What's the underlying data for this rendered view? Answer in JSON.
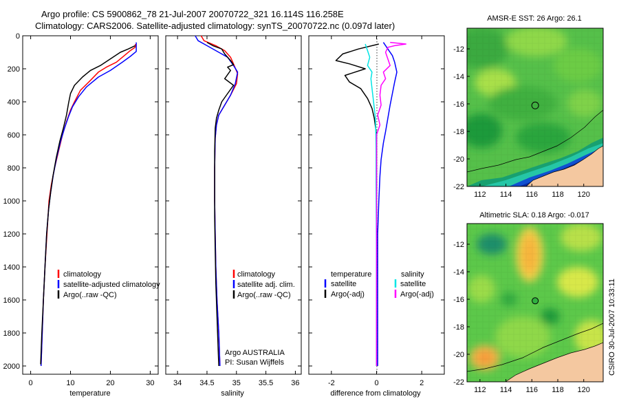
{
  "header": {
    "line1": "Argo profile: CS 5900862_78 21-Jul-2007 20070722_321 16.114S 116.258E",
    "line2": "Climatology: CARS2006. Satellite-adjusted climatology: synTS_20070722.nc (0.097d later)"
  },
  "colors": {
    "climatology": "#ff0000",
    "satellite": "#0000ff",
    "argo": "#000000",
    "sal_satellite": "#00e5e5",
    "sal_argo": "#ff00ff"
  },
  "chart_data": [
    {
      "id": "temperature",
      "type": "line",
      "xlabel": "temperature",
      "ylabel": "",
      "xlim": [
        -2,
        32
      ],
      "ylim": [
        0,
        2050
      ],
      "y_reversed": true,
      "xticks": [
        0,
        10,
        20,
        30
      ],
      "yticks": [
        0,
        200,
        400,
        600,
        800,
        1000,
        1200,
        1400,
        1600,
        1800,
        2000
      ],
      "legend": [
        "climatology",
        "satellite-adjusted climatology",
        "Argo(..raw -QC)"
      ],
      "series": [
        {
          "name": "climatology",
          "color_key": "climatology",
          "points": [
            [
              26.3,
              50
            ],
            [
              26.2,
              70
            ],
            [
              25,
              90
            ],
            [
              23.5,
              120
            ],
            [
              21.5,
              160
            ],
            [
              19,
              190
            ],
            [
              17,
              220
            ],
            [
              15,
              270
            ],
            [
              12.5,
              330
            ],
            [
              11,
              400
            ],
            [
              10,
              450
            ],
            [
              9,
              520
            ],
            [
              8,
              600
            ],
            [
              7,
              700
            ],
            [
              6,
              800
            ],
            [
              5.2,
              900
            ],
            [
              4.6,
              1000
            ],
            [
              4.1,
              1200
            ],
            [
              3.6,
              1400
            ],
            [
              3.2,
              1600
            ],
            [
              2.9,
              1800
            ],
            [
              2.6,
              2000
            ]
          ]
        },
        {
          "name": "satellite-adjusted climatology",
          "color_key": "satellite",
          "points": [
            [
              26.5,
              40
            ],
            [
              26.5,
              95
            ],
            [
              25,
              125
            ],
            [
              23,
              160
            ],
            [
              20,
              210
            ],
            [
              17,
              250
            ],
            [
              14,
              310
            ],
            [
              12,
              370
            ],
            [
              10.5,
              430
            ],
            [
              9.5,
              490
            ],
            [
              8.5,
              560
            ],
            [
              7.5,
              640
            ],
            [
              6.5,
              740
            ],
            [
              5.7,
              840
            ],
            [
              5,
              950
            ],
            [
              4.5,
              1050
            ],
            [
              4,
              1200
            ],
            [
              3.6,
              1400
            ],
            [
              3.2,
              1600
            ],
            [
              2.9,
              1800
            ],
            [
              2.6,
              2000
            ]
          ]
        },
        {
          "name": "Argo(..raw -QC)",
          "color_key": "argo",
          "points": [
            [
              26.2,
              60
            ],
            [
              24.5,
              80
            ],
            [
              22.5,
              100
            ],
            [
              20,
              140
            ],
            [
              17.5,
              180
            ],
            [
              15,
              210
            ],
            [
              13,
              250
            ],
            [
              11,
              300
            ],
            [
              10,
              350
            ],
            [
              9.5,
              410
            ],
            [
              9,
              480
            ],
            [
              8.2,
              560
            ],
            [
              7.3,
              640
            ],
            [
              6.4,
              740
            ],
            [
              5.6,
              850
            ],
            [
              5,
              950
            ],
            [
              4.5,
              1050
            ],
            [
              4,
              1200
            ],
            [
              3.6,
              1400
            ],
            [
              3.2,
              1600
            ],
            [
              2.8,
              1800
            ],
            [
              2.5,
              1990
            ]
          ]
        }
      ]
    },
    {
      "id": "salinity",
      "type": "line",
      "xlabel": "salinity",
      "xlim": [
        33.8,
        36.1
      ],
      "ylim": [
        0,
        2050
      ],
      "y_reversed": true,
      "xticks": [
        34,
        34.5,
        35,
        35.5,
        36
      ],
      "legend": [
        "climatology",
        "satellite adj. clim.",
        "Argo(..raw -QC)"
      ],
      "annotation": [
        "Argo AUSTRALIA",
        "PI: Susan Wijffels"
      ],
      "series": [
        {
          "name": "climatology",
          "color_key": "climatology",
          "points": [
            [
              34.4,
              0
            ],
            [
              34.45,
              30
            ],
            [
              34.65,
              60
            ],
            [
              34.8,
              90
            ],
            [
              34.9,
              130
            ],
            [
              34.95,
              170
            ],
            [
              35.02,
              230
            ],
            [
              35.0,
              290
            ],
            [
              34.9,
              360
            ],
            [
              34.8,
              420
            ],
            [
              34.7,
              480
            ],
            [
              34.66,
              540
            ],
            [
              34.64,
              620
            ],
            [
              34.63,
              800
            ],
            [
              34.63,
              1000
            ],
            [
              34.64,
              1200
            ],
            [
              34.65,
              1400
            ],
            [
              34.67,
              1600
            ],
            [
              34.7,
              1800
            ],
            [
              34.72,
              2000
            ]
          ]
        },
        {
          "name": "satellite adj. clim.",
          "color_key": "satellite",
          "points": [
            [
              34.3,
              0
            ],
            [
              34.35,
              30
            ],
            [
              34.5,
              60
            ],
            [
              34.7,
              100
            ],
            [
              34.85,
              130
            ],
            [
              34.95,
              180
            ],
            [
              35.02,
              220
            ],
            [
              34.98,
              290
            ],
            [
              34.9,
              360
            ],
            [
              34.8,
              420
            ],
            [
              34.7,
              480
            ],
            [
              34.66,
              540
            ],
            [
              34.64,
              620
            ],
            [
              34.63,
              800
            ],
            [
              34.63,
              1000
            ],
            [
              34.64,
              1200
            ],
            [
              34.65,
              1400
            ],
            [
              34.67,
              1600
            ],
            [
              34.7,
              1800
            ],
            [
              34.72,
              2000
            ]
          ]
        },
        {
          "name": "Argo(..raw -QC)",
          "color_key": "argo",
          "points": [
            [
              34.5,
              40
            ],
            [
              34.6,
              60
            ],
            [
              34.75,
              80
            ],
            [
              34.8,
              110
            ],
            [
              34.9,
              150
            ],
            [
              34.95,
              175
            ],
            [
              34.85,
              190
            ],
            [
              34.9,
              210
            ],
            [
              34.8,
              260
            ],
            [
              34.95,
              300
            ],
            [
              34.85,
              350
            ],
            [
              34.75,
              400
            ],
            [
              34.7,
              450
            ],
            [
              34.66,
              500
            ],
            [
              34.64,
              560
            ],
            [
              34.63,
              700
            ],
            [
              34.63,
              900
            ],
            [
              34.63,
              1100
            ],
            [
              34.64,
              1300
            ],
            [
              34.65,
              1500
            ],
            [
              34.67,
              1700
            ],
            [
              34.69,
              1900
            ],
            [
              34.7,
              2000
            ]
          ]
        }
      ]
    },
    {
      "id": "difference",
      "type": "line",
      "xlabel": "difference from climatology",
      "xlim": [
        -3,
        3
      ],
      "ylim": [
        0,
        2050
      ],
      "y_reversed": true,
      "xticks": [
        -2,
        0,
        2
      ],
      "legend_headers": [
        "temperature",
        "salinity"
      ],
      "legend": [
        "satellite",
        "Argo(-adj)",
        "satellite",
        "Argo(-adj)"
      ],
      "series": [
        {
          "name": "temperature satellite",
          "color_key": "satellite",
          "points": [
            [
              0.3,
              40
            ],
            [
              0.5,
              80
            ],
            [
              0.7,
              120
            ],
            [
              0.8,
              160
            ],
            [
              0.9,
              220
            ],
            [
              0.8,
              280
            ],
            [
              0.7,
              350
            ],
            [
              0.6,
              420
            ],
            [
              0.5,
              500
            ],
            [
              0.4,
              580
            ],
            [
              0.3,
              650
            ],
            [
              0.2,
              750
            ],
            [
              0.15,
              850
            ],
            [
              0.1,
              1000
            ],
            [
              0.05,
              1200
            ],
            [
              0.05,
              1400
            ],
            [
              0.05,
              1600
            ],
            [
              0.05,
              1800
            ],
            [
              0.05,
              2000
            ]
          ]
        },
        {
          "name": "temperature Argo(-adj)",
          "color_key": "argo",
          "points": [
            [
              0.1,
              50
            ],
            [
              -0.8,
              80
            ],
            [
              -1.5,
              110
            ],
            [
              -1.8,
              150
            ],
            [
              -1.2,
              170
            ],
            [
              -0.5,
              200
            ],
            [
              -1.4,
              240
            ],
            [
              -1.2,
              280
            ],
            [
              -0.7,
              320
            ],
            [
              -0.4,
              380
            ],
            [
              -0.2,
              440
            ],
            [
              -0.1,
              500
            ],
            [
              0,
              600
            ],
            [
              0,
              800
            ],
            [
              0,
              1000
            ],
            [
              0,
              1200
            ],
            [
              0,
              1400
            ],
            [
              0,
              1600
            ],
            [
              0,
              1800
            ],
            [
              0,
              2000
            ]
          ]
        },
        {
          "name": "salinity satellite",
          "color_key": "sal_satellite",
          "points": [
            [
              -0.5,
              50
            ],
            [
              -0.4,
              90
            ],
            [
              -0.3,
              130
            ],
            [
              -0.4,
              180
            ],
            [
              -0.2,
              220
            ],
            [
              -0.25,
              260
            ],
            [
              -0.2,
              320
            ],
            [
              -0.15,
              380
            ],
            [
              -0.1,
              440
            ],
            [
              -0.05,
              500
            ],
            [
              -0.03,
              600
            ],
            [
              -0.02,
              700
            ],
            [
              -0.02,
              900
            ],
            [
              -0.01,
              1200
            ],
            [
              0,
              1600
            ],
            [
              0,
              2000
            ]
          ]
        },
        {
          "name": "salinity Argo(-adj)",
          "color_key": "sal_argo",
          "points": [
            [
              0.6,
              40
            ],
            [
              1.3,
              50
            ],
            [
              0.8,
              60
            ],
            [
              0.5,
              70
            ],
            [
              0.4,
              100
            ],
            [
              0.5,
              140
            ],
            [
              0.6,
              180
            ],
            [
              0.3,
              220
            ],
            [
              0.4,
              260
            ],
            [
              0.2,
              300
            ],
            [
              0.15,
              360
            ],
            [
              0.2,
              420
            ],
            [
              0.05,
              480
            ],
            [
              0.15,
              540
            ],
            [
              0,
              600
            ],
            [
              0,
              800
            ],
            [
              0,
              1000
            ],
            [
              0,
              1200
            ],
            [
              0,
              1400
            ],
            [
              0,
              1600
            ],
            [
              0,
              1800
            ],
            [
              0,
              2000
            ]
          ]
        }
      ]
    },
    {
      "id": "sst_map",
      "type": "heatmap",
      "title": "AMSR-E SST: 26 Argo: 26.1",
      "xlim": [
        111,
        121.5
      ],
      "ylim": [
        -22,
        -10.5
      ],
      "xticks": [
        112,
        114,
        116,
        118,
        120
      ],
      "yticks": [
        -12,
        -14,
        -16,
        -18,
        -20,
        -22
      ],
      "argo_position": [
        116.258,
        -16.114
      ]
    },
    {
      "id": "sla_map",
      "type": "heatmap",
      "title": "Altimetric SLA: 0.18 Argo: -0.017",
      "xlim": [
        111,
        121.5
      ],
      "ylim": [
        -22,
        -10.5
      ],
      "xticks": [
        112,
        114,
        116,
        118,
        120
      ],
      "yticks": [
        -12,
        -14,
        -16,
        -18,
        -20,
        -22
      ],
      "argo_position": [
        116.258,
        -16.114
      ]
    }
  ],
  "stamp": "CSIRO 30-Jul-2007 10:33:11"
}
